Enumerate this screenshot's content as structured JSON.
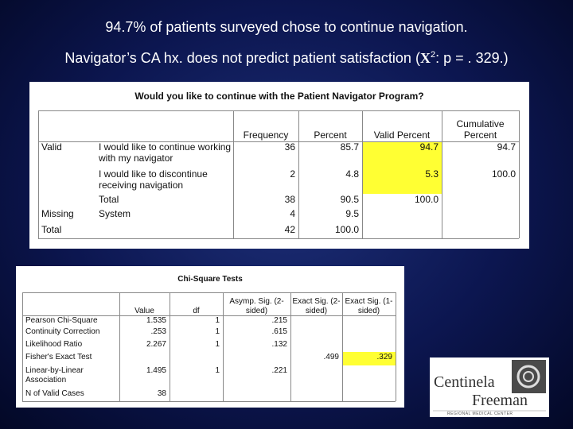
{
  "header": {
    "line1": "94.7% of patients surveyed chose to continue navigation.",
    "line2": {
      "before": "Navigator’s CA hx. does not predict patient satisfaction (",
      "symbol": "X",
      "sup": "2",
      "after": ": p = . 329.)"
    }
  },
  "table1": {
    "title": "Would you like to continue with the Patient Navigator Program?",
    "headers": [
      "Frequency",
      "Percent",
      "Valid Percent",
      "Cumulative Percent"
    ],
    "rows": [
      [
        "Valid",
        "I would like to continue working with my navigator",
        "36",
        "85.7",
        "94.7",
        "94.7"
      ],
      [
        null,
        "I would like to discontinue receiving navigation",
        "2",
        "4.8",
        "5.3",
        "100.0"
      ],
      [
        null,
        "Total",
        "38",
        "90.5",
        "100.0",
        null
      ],
      [
        "Missing",
        "System",
        "4",
        "9.5",
        null,
        null
      ],
      [
        "Total",
        null,
        "42",
        "100.0",
        null,
        null
      ]
    ]
  },
  "table2": {
    "title": "Chi-Square Tests",
    "headers": [
      "Value",
      "df",
      "Asymp. Sig. (2-sided)",
      "Exact Sig. (2-sided)",
      "Exact Sig. (1-sided)"
    ],
    "rows": [
      [
        "Pearson Chi-Square",
        "1.535",
        "1",
        ".215",
        null,
        null
      ],
      [
        "Continuity Correction",
        ".253",
        "1",
        ".615",
        null,
        null
      ],
      [
        "Likelihood Ratio",
        "2.267",
        "1",
        ".132",
        null,
        null
      ],
      [
        "Fisher's Exact Test",
        null,
        null,
        null,
        ".499",
        ".329"
      ],
      [
        "Linear-by-Linear Association",
        "1.495",
        "1",
        ".221",
        null,
        null
      ],
      [
        "N of Valid Cases",
        "38",
        null,
        null,
        null,
        null
      ]
    ]
  },
  "logo": {
    "name1": "Centinela",
    "name2": "Freeman",
    "tagline": "REGIONAL MEDICAL CENTER"
  }
}
